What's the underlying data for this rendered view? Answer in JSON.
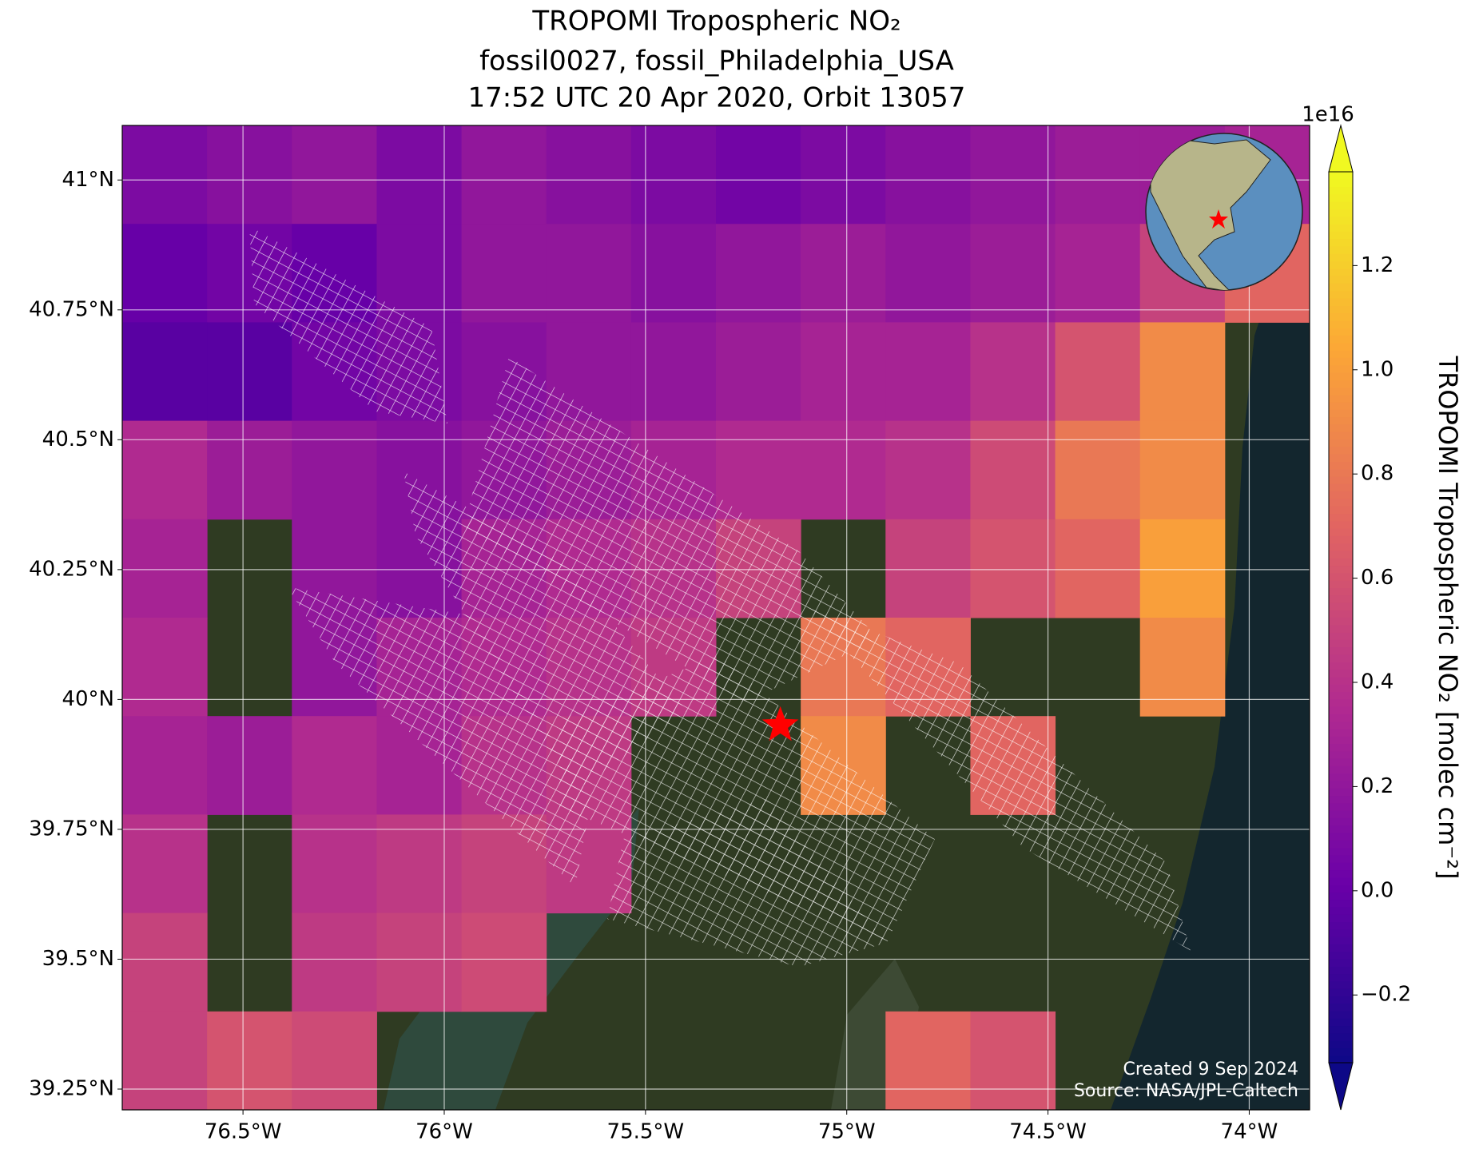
{
  "chart_data": {
    "type": "gridmap",
    "title": [
      "TROPOMI Tropospheric NO₂",
      "fossil0027, fossil_Philadelphia_USA",
      "17:52 UTC 20 Apr 2020, Orbit 13057"
    ],
    "xlim": [
      -76.8,
      -73.85
    ],
    "ylim": [
      39.21,
      41.105
    ],
    "xticks": [
      {
        "value": -76.5,
        "label": "76.5°W"
      },
      {
        "value": -76,
        "label": "76°W"
      },
      {
        "value": -75.5,
        "label": "75.5°W"
      },
      {
        "value": -75,
        "label": "75°W"
      },
      {
        "value": -74.5,
        "label": "74.5°W"
      },
      {
        "value": -74,
        "label": "74°W"
      }
    ],
    "yticks": [
      {
        "value": 41,
        "label": "41°N"
      },
      {
        "value": 40.75,
        "label": "40.75°N"
      },
      {
        "value": 40.5,
        "label": "40.5°N"
      },
      {
        "value": 40.25,
        "label": "40.25°N"
      },
      {
        "value": 40,
        "label": "40°N"
      },
      {
        "value": 39.75,
        "label": "39.75°N"
      },
      {
        "value": 39.5,
        "label": "39.5°N"
      },
      {
        "value": 39.25,
        "label": "39.25°N"
      }
    ],
    "grid": true,
    "values": [
      [
        0.1,
        0.15,
        0.2,
        0.1,
        0.2,
        0.15,
        0.1,
        0.05,
        0.1,
        0.15,
        0.2,
        0.25,
        0.25,
        0.3
      ],
      [
        0.0,
        0.05,
        0.0,
        0.1,
        0.2,
        0.2,
        0.15,
        0.2,
        0.25,
        0.2,
        0.25,
        0.3,
        0.5,
        0.7
      ],
      [
        -0.05,
        -0.05,
        0.05,
        0.1,
        0.15,
        0.2,
        0.2,
        0.25,
        0.3,
        0.3,
        0.4,
        0.6,
        0.9,
        null
      ],
      [
        0.35,
        0.25,
        0.2,
        0.15,
        0.2,
        0.25,
        0.3,
        0.35,
        0.35,
        0.4,
        0.55,
        0.8,
        0.9,
        null
      ],
      [
        0.3,
        null,
        0.2,
        0.15,
        0.3,
        0.35,
        0.4,
        0.5,
        null,
        0.5,
        0.6,
        0.7,
        1.0,
        null
      ],
      [
        0.35,
        null,
        0.2,
        0.3,
        0.35,
        0.4,
        0.45,
        null,
        0.8,
        0.7,
        null,
        null,
        0.9,
        null
      ],
      [
        0.3,
        0.25,
        0.35,
        0.3,
        0.4,
        0.45,
        null,
        null,
        0.9,
        null,
        0.7,
        null,
        null,
        null
      ],
      [
        0.4,
        null,
        0.4,
        0.45,
        0.5,
        0.45,
        null,
        null,
        null,
        null,
        null,
        null,
        null,
        null
      ],
      [
        0.5,
        null,
        0.45,
        0.5,
        0.55,
        null,
        null,
        null,
        null,
        null,
        null,
        null,
        null,
        null
      ],
      [
        0.5,
        0.6,
        0.55,
        null,
        null,
        null,
        null,
        null,
        null,
        0.7,
        0.6,
        null,
        null,
        null
      ]
    ],
    "site": {
      "lon": -75.165,
      "lat": 39.95,
      "color": "#ff0000"
    },
    "colormap": [
      "#0d0887",
      "#6a00a8",
      "#b12a90",
      "#e16462",
      "#fca636",
      "#f0f921"
    ],
    "clim": [
      -0.33,
      1.38
    ],
    "cticks": [
      {
        "value": -0.2,
        "label": "−0.2"
      },
      {
        "value": 0,
        "label": "0.0"
      },
      {
        "value": 0.2,
        "label": "0.2"
      },
      {
        "value": 0.4,
        "label": "0.4"
      },
      {
        "value": 0.6,
        "label": "0.6"
      },
      {
        "value": 0.8,
        "label": "0.8"
      },
      {
        "value": 1.0,
        "label": "1.0"
      },
      {
        "value": 1.2,
        "label": "1.2"
      }
    ],
    "colorbar_offset": "1e16",
    "colorbar_label": "TROPOMI Tropospheric NO₂ [molec cm⁻²]",
    "credits": [
      "Created 9 Sep 2024",
      "Source: NASA/JPL-Caltech"
    ]
  }
}
